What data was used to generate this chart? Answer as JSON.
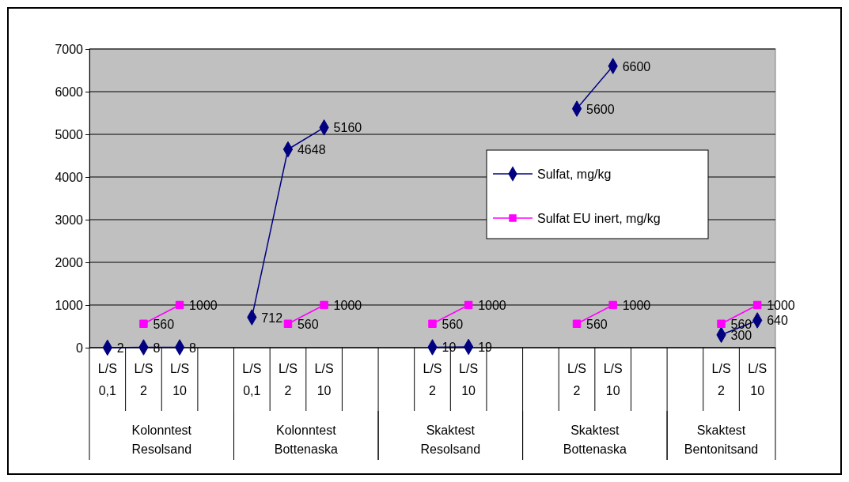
{
  "chart_data": {
    "type": "line",
    "categories": [
      "L/S 0,1",
      "L/S 2",
      "L/S 10",
      null,
      "L/S 0,1",
      "L/S 2",
      "L/S 10",
      null,
      null,
      "L/S 2",
      "L/S 10",
      null,
      null,
      "L/S 2",
      "L/S 10",
      null,
      null,
      "L/S 2",
      "L/S 10"
    ],
    "annotations": [
      "Kolonntest Resolsand",
      "Kolonntest Bottenaska",
      "Skaktest Resolsand",
      "Skaktest Bottenaska",
      "Skaktest Bentonitsand"
    ],
    "series": [
      {
        "name": "Sulfat, mg/kg",
        "color": "#000080",
        "marker": "diamond",
        "values": [
          2,
          8,
          8,
          null,
          712,
          4648,
          5160,
          null,
          null,
          10,
          19,
          null,
          null,
          5600,
          6600,
          null,
          null,
          300,
          640
        ]
      },
      {
        "name": "Sulfat EU inert, mg/kg",
        "color": "#ff00ff",
        "marker": "square",
        "values": [
          null,
          560,
          1000,
          null,
          null,
          560,
          1000,
          null,
          null,
          560,
          1000,
          null,
          null,
          560,
          1000,
          null,
          null,
          560,
          1000
        ]
      }
    ],
    "ylim": [
      0,
      7000
    ],
    "yticks": [
      0,
      1000,
      2000,
      3000,
      4000,
      5000,
      6000,
      7000
    ],
    "grid": "y",
    "legend": "right",
    "data_labels": true,
    "line_style": "solid"
  }
}
